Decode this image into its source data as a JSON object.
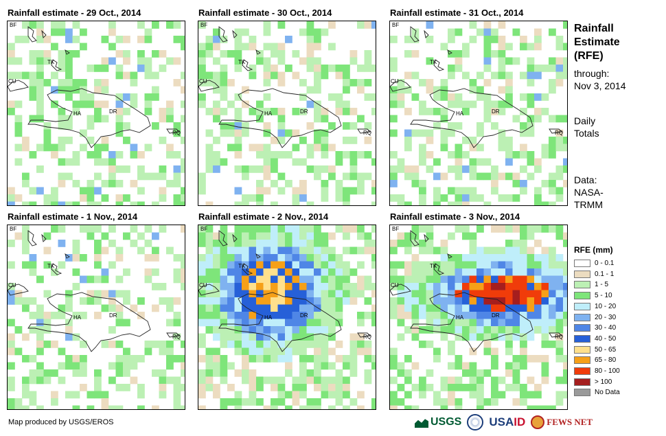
{
  "panels": [
    {
      "title": "Rainfall estimate - 29 Oct., 2014",
      "seed": 11,
      "heavy": 0
    },
    {
      "title": "Rainfall estimate - 30 Oct., 2014",
      "seed": 23,
      "heavy": 0
    },
    {
      "title": "Rainfall estimate - 31 Oct., 2014",
      "seed": 37,
      "heavy": 0
    },
    {
      "title": "Rainfall estimate - 1 Nov., 2014",
      "seed": 41,
      "heavy": 0
    },
    {
      "title": "Rainfall estimate - 2 Nov., 2014",
      "seed": 53,
      "heavy": 2
    },
    {
      "title": "Rainfall estimate - 3 Nov., 2014",
      "seed": 67,
      "heavy": 3
    }
  ],
  "place_labels": {
    "bf": "BF",
    "tk": "TK",
    "cu": "CU",
    "ha": "HA",
    "dr": "DR",
    "rq": "RQ"
  },
  "sidebar": {
    "title_line1": "Rainfall",
    "title_line2": "Estimate",
    "title_line3": "(RFE)",
    "through_label": "through:",
    "through_date": "Nov 3, 2014",
    "daily_line1": "Daily",
    "daily_line2": "Totals",
    "data_line1": "Data:",
    "data_line2": "NASA-",
    "data_line3": "TRMM"
  },
  "legend": {
    "title": "RFE (mm)",
    "items": [
      {
        "label": "0 - 0.1",
        "color": "#ffffff"
      },
      {
        "label": "0.1 - 1",
        "color": "#ecdcc0"
      },
      {
        "label": "1 - 5",
        "color": "#bcf0b4"
      },
      {
        "label": "5 - 10",
        "color": "#7ee57a"
      },
      {
        "label": "10 - 20",
        "color": "#bfeefa"
      },
      {
        "label": "20 - 30",
        "color": "#7fb2f0"
      },
      {
        "label": "30 - 40",
        "color": "#4f86e6"
      },
      {
        "label": "40 - 50",
        "color": "#2660d8"
      },
      {
        "label": "50 - 65",
        "color": "#ffe08c"
      },
      {
        "label": "65 - 80",
        "color": "#f6a018"
      },
      {
        "label": "80 - 100",
        "color": "#f03c0a"
      },
      {
        "label": "> 100",
        "color": "#a51e1e"
      },
      {
        "label": "No Data",
        "color": "#9a9a9a"
      }
    ]
  },
  "credit": "Map produced by USGS/EROS",
  "logos": {
    "usgs": "USGS",
    "usaid_blue": "USA",
    "usaid_red": "ID",
    "fews": "FEWS NET"
  }
}
